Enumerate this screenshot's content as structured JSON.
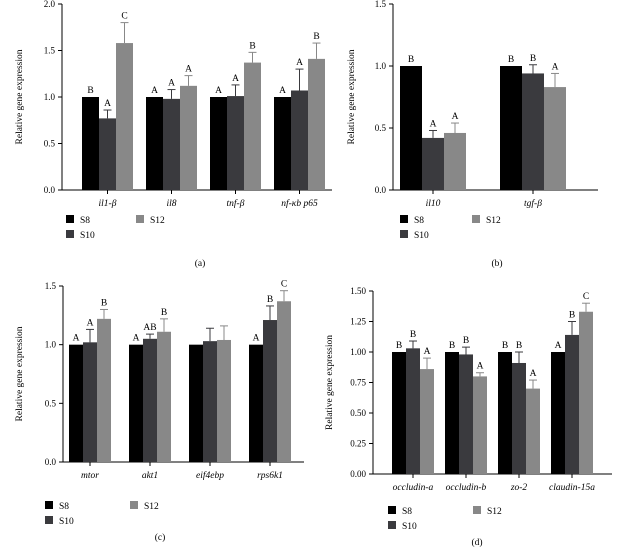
{
  "colors": {
    "S8": "#000000",
    "S10": "#3a3a3e",
    "S12": "#888888"
  },
  "chart_data": [
    {
      "type": "bar",
      "panel_label": "(a)",
      "ylabel": "Relative gene expression",
      "ylim": [
        0,
        2.0
      ],
      "yticks": [
        "0.0",
        "0.5",
        "1.0",
        "1.5",
        "2.0"
      ],
      "ytick_values": [
        0,
        0.5,
        1.0,
        1.5,
        2.0
      ],
      "categories": [
        "il1-β",
        "il8",
        "tnf-β",
        "nf-κb p65"
      ],
      "series": [
        {
          "name": "S8",
          "values": [
            1.0,
            1.0,
            1.0,
            1.0
          ],
          "errors": [
            0,
            0,
            0,
            0
          ],
          "letters": [
            "B",
            "A",
            "A",
            "A"
          ]
        },
        {
          "name": "S10",
          "values": [
            0.77,
            0.98,
            1.01,
            1.07
          ],
          "errors": [
            0.09,
            0.1,
            0.12,
            0.23
          ],
          "letters": [
            "A",
            "A",
            "A",
            "A"
          ]
        },
        {
          "name": "S12",
          "values": [
            1.58,
            1.12,
            1.37,
            1.41
          ],
          "errors": [
            0.22,
            0.11,
            0.11,
            0.17
          ],
          "letters": [
            "C",
            "A",
            "B",
            "B"
          ]
        }
      ],
      "legend": "bottom"
    },
    {
      "type": "bar",
      "panel_label": "(b)",
      "ylabel": "Relative gene expression",
      "ylim": [
        0,
        1.5
      ],
      "yticks": [
        "0.0",
        "0.5",
        "1.0",
        "1.5"
      ],
      "ytick_values": [
        0,
        0.5,
        1.0,
        1.5
      ],
      "categories": [
        "il10",
        "tgf-β"
      ],
      "series": [
        {
          "name": "S8",
          "values": [
            1.0,
            1.0
          ],
          "errors": [
            0,
            0
          ],
          "letters": [
            "B",
            "B"
          ]
        },
        {
          "name": "S10",
          "values": [
            0.42,
            0.94
          ],
          "errors": [
            0.06,
            0.07
          ],
          "letters": [
            "A",
            "B"
          ]
        },
        {
          "name": "S12",
          "values": [
            0.46,
            0.83
          ],
          "errors": [
            0.08,
            0.11
          ],
          "letters": [
            "A",
            "A"
          ]
        }
      ],
      "legend": "bottom"
    },
    {
      "type": "bar",
      "panel_label": "(c)",
      "ylabel": "Relative gene expression",
      "ylim": [
        0,
        1.5
      ],
      "yticks": [
        "0.0",
        "0.5",
        "1.0",
        "1.5"
      ],
      "ytick_values": [
        0,
        0.5,
        1.0,
        1.5
      ],
      "categories": [
        "mtor",
        "akt1",
        "eif4ebp",
        "rps6k1"
      ],
      "series": [
        {
          "name": "S8",
          "values": [
            1.0,
            1.0,
            1.0,
            1.0
          ],
          "errors": [
            0,
            0,
            0,
            0
          ],
          "letters": [
            "A",
            "A",
            "",
            "A"
          ]
        },
        {
          "name": "S10",
          "values": [
            1.02,
            1.05,
            1.03,
            1.21
          ],
          "errors": [
            0.11,
            0.04,
            0.11,
            0.12
          ],
          "letters": [
            "A",
            "AB",
            "",
            "B"
          ]
        },
        {
          "name": "S12",
          "values": [
            1.22,
            1.11,
            1.04,
            1.37
          ],
          "errors": [
            0.08,
            0.11,
            0.12,
            0.09
          ],
          "letters": [
            "B",
            "B",
            "",
            "C"
          ]
        }
      ],
      "legend": "bottom"
    },
    {
      "type": "bar",
      "panel_label": "(d)",
      "ylabel": "Relative gene expression",
      "ylim": [
        0,
        1.5
      ],
      "yticks": [
        "0.00",
        "0.25",
        "0.50",
        "0.75",
        "1.00",
        "1.25",
        "1.50"
      ],
      "ytick_values": [
        0,
        0.25,
        0.5,
        0.75,
        1.0,
        1.25,
        1.5
      ],
      "categories": [
        "occludin-a",
        "occludin-b",
        "zo-2",
        "claudin-15a"
      ],
      "series": [
        {
          "name": "S8",
          "values": [
            1.0,
            1.0,
            1.0,
            1.0
          ],
          "errors": [
            0,
            0,
            0,
            0
          ],
          "letters": [
            "B",
            "B",
            "B",
            "A"
          ]
        },
        {
          "name": "S10",
          "values": [
            1.03,
            0.98,
            0.91,
            1.14
          ],
          "errors": [
            0.06,
            0.06,
            0.09,
            0.11
          ],
          "letters": [
            "B",
            "B",
            "B",
            "B"
          ]
        },
        {
          "name": "S12",
          "values": [
            0.86,
            0.8,
            0.7,
            1.33
          ],
          "errors": [
            0.09,
            0.03,
            0.07,
            0.07
          ],
          "letters": [
            "A",
            "A",
            "A",
            "C"
          ]
        }
      ],
      "legend": "bottom"
    }
  ]
}
